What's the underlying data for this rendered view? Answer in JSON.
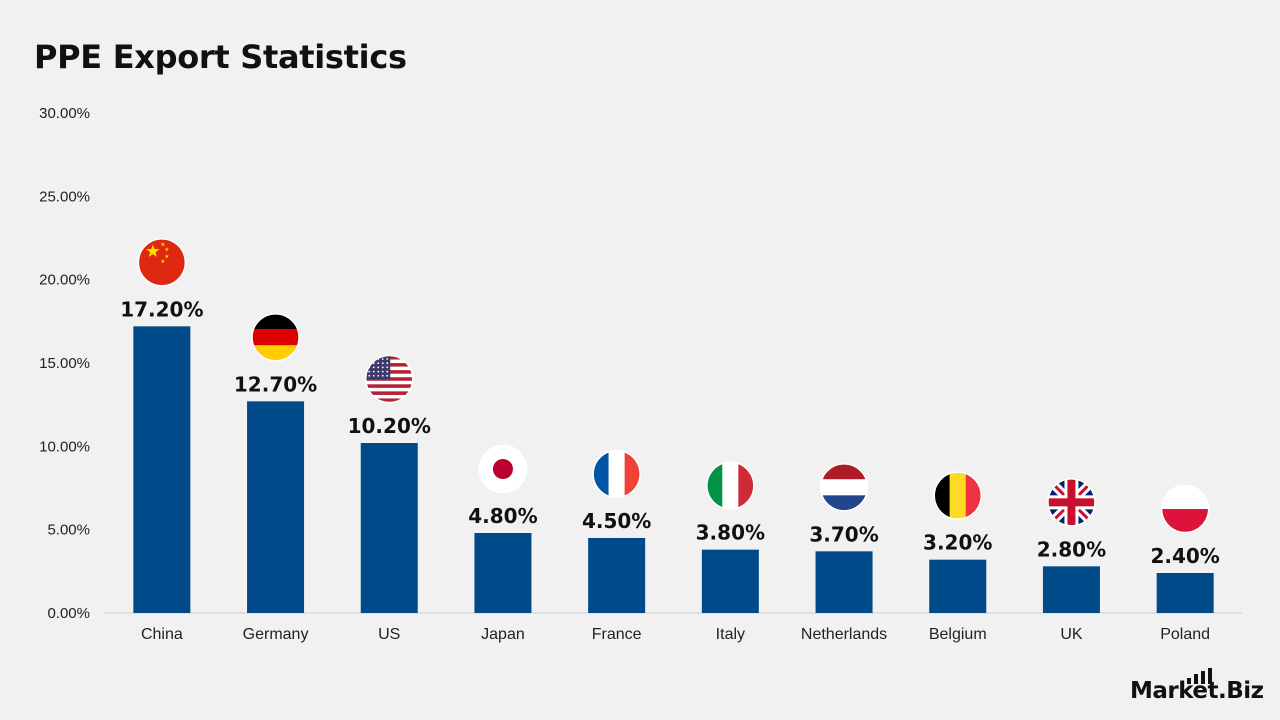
{
  "chart_data": {
    "type": "bar",
    "title": "PPE Export Statistics",
    "categories": [
      "China",
      "Germany",
      "US",
      "Japan",
      "France",
      "Italy",
      "Netherlands",
      "Belgium",
      "UK",
      "Poland"
    ],
    "values": [
      17.2,
      12.7,
      10.2,
      4.8,
      4.5,
      3.8,
      3.7,
      3.2,
      2.8,
      2.4
    ],
    "data_labels": [
      "17.20%",
      "12.70%",
      "10.20%",
      "4.80%",
      "4.50%",
      "3.80%",
      "3.70%",
      "3.20%",
      "2.80%",
      "2.40%"
    ],
    "yticks": [
      "0.00%",
      "5.00%",
      "10.00%",
      "15.00%",
      "20.00%",
      "25.00%",
      "30.00%"
    ],
    "ylim": [
      0,
      30
    ],
    "xlabel": "",
    "ylabel": "",
    "grid": false,
    "legend": "none",
    "bar_color": "#004a89",
    "flag_icons": [
      "china-flag",
      "germany-flag",
      "us-flag",
      "japan-flag",
      "france-flag",
      "italy-flag",
      "netherlands-flag",
      "belgium-flag",
      "uk-flag",
      "poland-flag"
    ]
  },
  "branding": {
    "logo_text": "Market.Biz"
  }
}
